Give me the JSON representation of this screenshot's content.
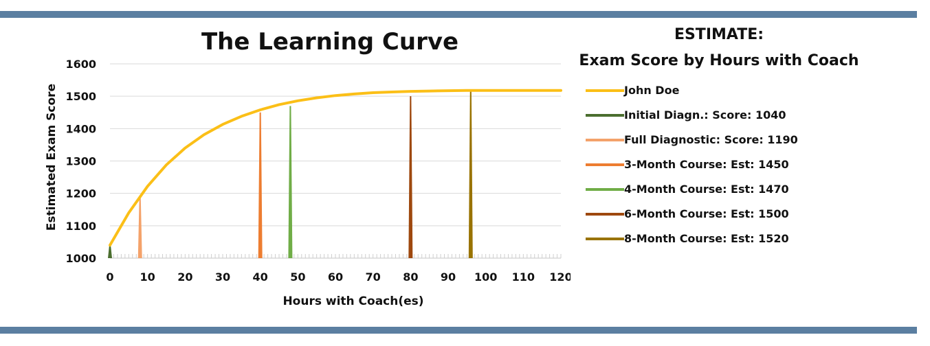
{
  "side_title": {
    "line1": "ESTIMATE:",
    "line2": "Exam Score by Hours with Coach"
  },
  "chart_data": {
    "type": "line",
    "title": "The Learning Curve",
    "xlabel": "Hours with Coach(es)",
    "ylabel": "Estimated Exam Score",
    "xlim": [
      0,
      120
    ],
    "ylim": [
      1000,
      1600
    ],
    "xticks": [
      0,
      10,
      20,
      30,
      40,
      50,
      60,
      70,
      80,
      90,
      100,
      110,
      120
    ],
    "yticks": [
      1000,
      1100,
      1200,
      1300,
      1400,
      1500,
      1600
    ],
    "grid": "horizontal",
    "legend_position": "right",
    "series": [
      {
        "name": "John Doe",
        "color": "#fbbf17",
        "x": [
          0,
          5,
          10,
          15,
          20,
          25,
          30,
          35,
          40,
          45,
          50,
          55,
          60,
          65,
          70,
          75,
          80,
          85,
          90,
          95,
          100,
          105,
          110,
          115,
          120
        ],
        "y": [
          1040,
          1140,
          1222,
          1288,
          1340,
          1381,
          1413,
          1438,
          1458,
          1474,
          1486,
          1495,
          1502,
          1507,
          1511,
          1513,
          1515,
          1516,
          1517,
          1518,
          1518,
          1518,
          1518,
          1518,
          1518
        ]
      }
    ],
    "markers": [
      {
        "name": "Initial Diagn.: Score: 1040",
        "x": 0,
        "y": 1040,
        "color": "#4b6e2f"
      },
      {
        "name": "Full Diagnostic: Score: 1190",
        "x": 8,
        "y": 1190,
        "color": "#f4a26a"
      },
      {
        "name": "3-Month Course: Est: 1450",
        "x": 40,
        "y": 1450,
        "color": "#ed7d31"
      },
      {
        "name": "4-Month Course: Est: 1470",
        "x": 48,
        "y": 1470,
        "color": "#70ad47"
      },
      {
        "name": "6-Month Course: Est: 1500",
        "x": 80,
        "y": 1500,
        "color": "#9e480e"
      },
      {
        "name": "8-Month Course: Est: 1520",
        "x": 96,
        "y": 1520,
        "color": "#997300"
      }
    ]
  }
}
